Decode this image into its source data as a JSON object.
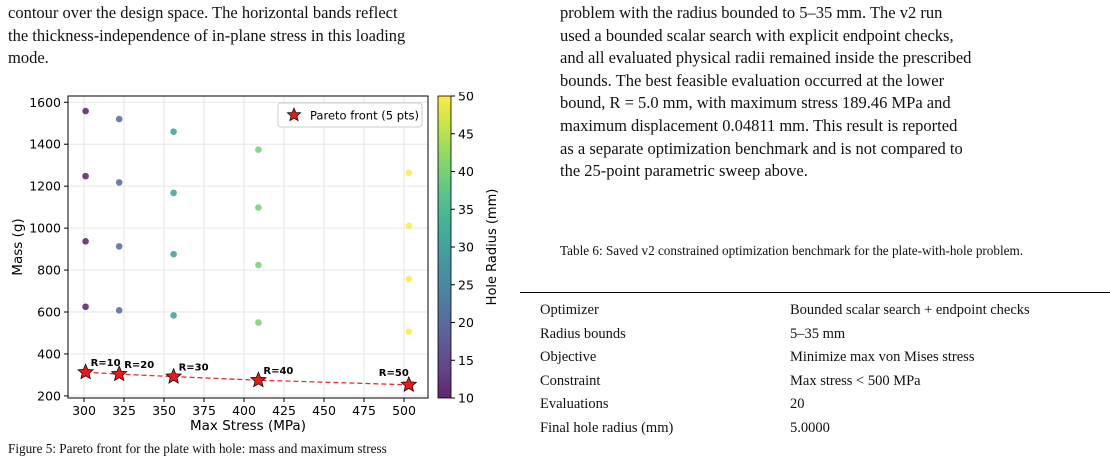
{
  "left_text": {
    "lines": [
      "contour over the design space. The horizontal bands reflect",
      "the thickness-independence of in-plane stress in this loading",
      "mode."
    ]
  },
  "right_text": {
    "lines": [
      "problem with the radius bounded to 5–35 mm. The v2 run",
      "used a bounded scalar search with explicit endpoint checks,",
      "and all evaluated physical radii remained inside the prescribed",
      "bounds. The best feasible evaluation occurred at the lower",
      "bound, R = 5.0 mm, with maximum stress 189.46 MPa and",
      "maximum displacement 0.04811 mm. This result is reported",
      "as a separate optimization benchmark and is not compared to",
      "the 25-point parametric sweep above."
    ]
  },
  "table_caption": "Table 6: Saved v2 constrained optimization benchmark for the plate-with-hole problem.",
  "table_rows": [
    {
      "label": "Optimizer",
      "value": "Bounded scalar search + endpoint checks"
    },
    {
      "label": "Radius bounds",
      "value": "5–35 mm"
    },
    {
      "label": "Objective",
      "value": "Minimize max von Mises stress"
    },
    {
      "label": "Constraint",
      "value": "Max stress < 500 MPa"
    },
    {
      "label": "Evaluations",
      "value": "20"
    },
    {
      "label": "Final hole radius (mm)",
      "value": "5.0000"
    }
  ],
  "figure_caption_partial": "Figure 5: Pareto front for the plate with hole: mass and maximum stress",
  "chart_data": {
    "type": "scatter",
    "xlabel": "Max Stress (MPa)",
    "ylabel": "Mass (g)",
    "xlim": [
      290,
      515
    ],
    "ylim": [
      190,
      1630
    ],
    "xticks": [
      300,
      325,
      350,
      375,
      400,
      425,
      450,
      475,
      500
    ],
    "yticks": [
      200,
      400,
      600,
      800,
      1000,
      1200,
      1400,
      1600
    ],
    "grid": true,
    "legend": {
      "label": "Pareto front (5 pts)",
      "placement": "top-right"
    },
    "colorbar": {
      "label": "Hole Radius (mm)",
      "range": [
        10,
        50
      ],
      "ticks": [
        10,
        15,
        20,
        25,
        30,
        35,
        40,
        45,
        50
      ]
    },
    "points": [
      {
        "x": 301,
        "y": 1558,
        "r": 10
      },
      {
        "x": 301,
        "y": 1248,
        "r": 10
      },
      {
        "x": 301,
        "y": 937,
        "r": 10
      },
      {
        "x": 301,
        "y": 625,
        "r": 10
      },
      {
        "x": 322,
        "y": 1520,
        "r": 20
      },
      {
        "x": 322,
        "y": 1218,
        "r": 20
      },
      {
        "x": 322,
        "y": 913,
        "r": 20
      },
      {
        "x": 322,
        "y": 608,
        "r": 20
      },
      {
        "x": 356,
        "y": 1460,
        "r": 30
      },
      {
        "x": 356,
        "y": 1168,
        "r": 30
      },
      {
        "x": 356,
        "y": 876,
        "r": 30
      },
      {
        "x": 356,
        "y": 584,
        "r": 30
      },
      {
        "x": 409,
        "y": 1374,
        "r": 40
      },
      {
        "x": 409,
        "y": 1098,
        "r": 40
      },
      {
        "x": 409,
        "y": 824,
        "r": 40
      },
      {
        "x": 409,
        "y": 550,
        "r": 40
      },
      {
        "x": 503,
        "y": 1264,
        "r": 50
      },
      {
        "x": 503,
        "y": 1011,
        "r": 50
      },
      {
        "x": 503,
        "y": 758,
        "r": 50
      },
      {
        "x": 503,
        "y": 506,
        "r": 50
      }
    ],
    "pareto": [
      {
        "x": 301,
        "y": 313,
        "label": "R=10"
      },
      {
        "x": 322,
        "y": 304,
        "label": "R=20"
      },
      {
        "x": 356,
        "y": 292,
        "label": "R=30"
      },
      {
        "x": 409,
        "y": 275,
        "label": "R=40"
      },
      {
        "x": 503,
        "y": 253,
        "label": "R=50"
      }
    ]
  }
}
